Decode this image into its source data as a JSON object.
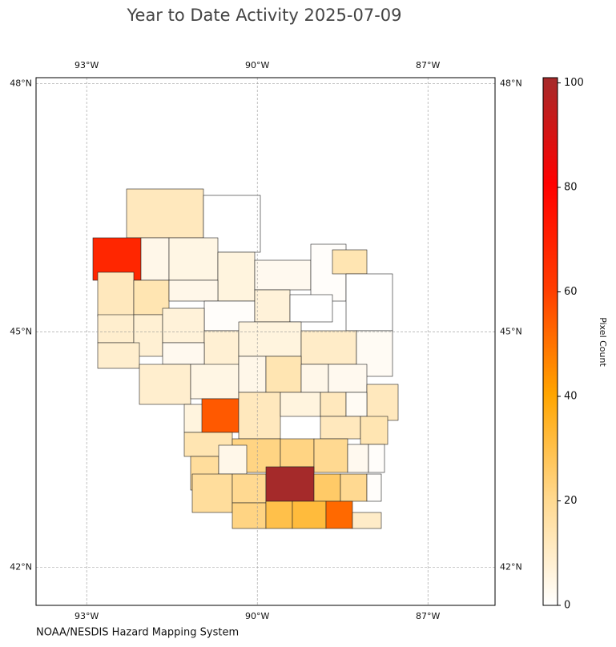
{
  "chart_data": {
    "type": "choropleth",
    "title": "Year to Date Activity 2025-07-09",
    "source": "NOAA/NESDIS Hazard Mapping System",
    "colorbar_label": "Pixel Count",
    "region_values": [
      12,
      0,
      68,
      4,
      5,
      6,
      3,
      1,
      14,
      0,
      12,
      14,
      4,
      1,
      7,
      0,
      9,
      8,
      7,
      8,
      6,
      10,
      2,
      9,
      3,
      9,
      5,
      4,
      14,
      4,
      3,
      12,
      6,
      55,
      12,
      6,
      12,
      2,
      12,
      14,
      14,
      22,
      22,
      20,
      3,
      1,
      18,
      4,
      18,
      20,
      101,
      26,
      20,
      1,
      22,
      30,
      32,
      52,
      10
    ],
    "colormap": [
      "#ffffff",
      "#ffd990",
      "#ffa500",
      "#ff3c00",
      "#ff0000",
      "#a52a2a"
    ],
    "clim": [
      0,
      101
    ],
    "cticks": [
      0,
      20,
      40,
      60,
      80,
      100
    ],
    "xlim": [
      -93.89,
      -85.82
    ],
    "ylim": [
      41.5,
      48.07
    ],
    "xticks": [
      {
        "value": -93,
        "label": "93°W"
      },
      {
        "value": -90,
        "label": "90°W"
      },
      {
        "value": -87,
        "label": "87°W"
      }
    ],
    "yticks": [
      {
        "value": 48,
        "label": "48°N"
      },
      {
        "value": 45,
        "label": "45°N"
      },
      {
        "value": 42,
        "label": "42°N"
      }
    ],
    "grid": true
  }
}
